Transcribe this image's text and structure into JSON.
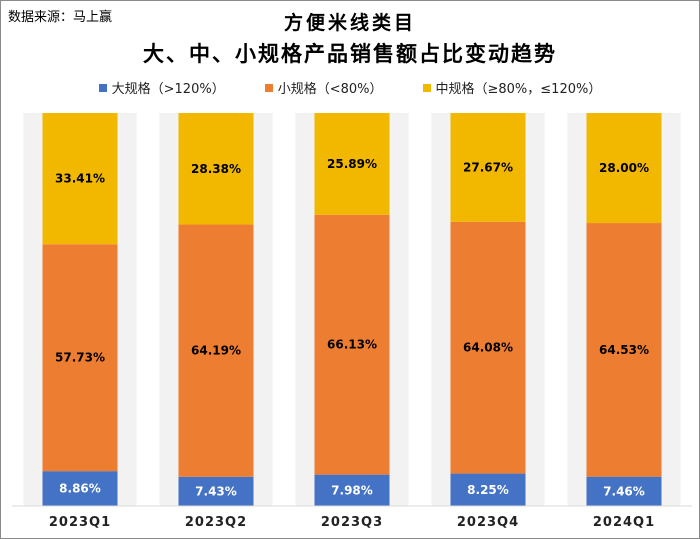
{
  "source_label": "数据来源：马上赢",
  "chart_data": {
    "type": "bar",
    "stacked": true,
    "percent": true,
    "title": "方便米线类目",
    "subtitle": "大、中、小规格产品销售额占比变动趋势",
    "categories": [
      "2023Q1",
      "2023Q2",
      "2023Q3",
      "2023Q4",
      "2024Q1"
    ],
    "series": [
      {
        "name": "大规格（>120%）",
        "color": "#4472c4",
        "values": [
          8.86,
          7.43,
          7.98,
          8.25,
          7.46
        ],
        "labels": [
          "8.86%",
          "7.43%",
          "7.98%",
          "8.25%",
          "7.46%"
        ],
        "label_color": "#ffffff"
      },
      {
        "name": "小规格（<80%）",
        "color": "#ed7d31",
        "values": [
          57.73,
          64.19,
          66.13,
          64.08,
          64.53
        ],
        "labels": [
          "57.73%",
          "64.19%",
          "66.13%",
          "64.08%",
          "64.53%"
        ],
        "label_color": "#000000"
      },
      {
        "name": "中规格（≥80%，≤120%）",
        "color": "#f2b800",
        "values": [
          33.41,
          28.38,
          25.89,
          27.67,
          28.0
        ],
        "labels": [
          "33.41%",
          "28.38%",
          "25.89%",
          "27.67%",
          "28.00%"
        ],
        "label_color": "#000000"
      }
    ],
    "ylim": [
      0,
      100
    ],
    "grid": false,
    "legend_position": "top",
    "column_bands": true
  }
}
